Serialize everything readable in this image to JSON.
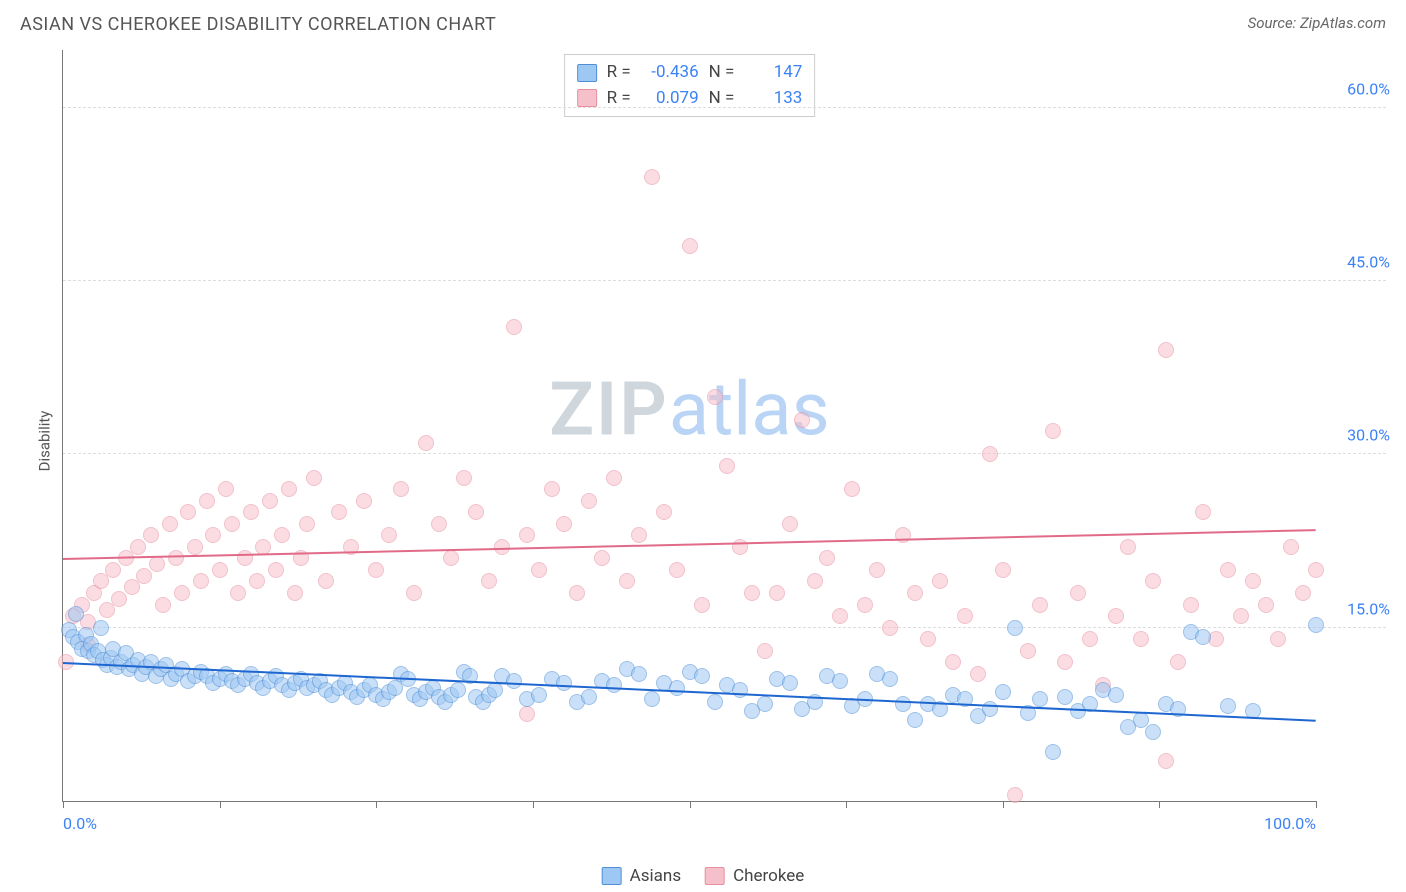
{
  "title": "ASIAN VS CHEROKEE DISABILITY CORRELATION CHART",
  "source": "Source: ZipAtlas.com",
  "ylabel": "Disability",
  "watermark": {
    "zip": "ZIP",
    "atlas": "atlas"
  },
  "chart": {
    "type": "scatter",
    "xlim": [
      0,
      100
    ],
    "ylim": [
      0,
      65
    ],
    "y_ticks": [
      15.0,
      30.0,
      45.0,
      60.0
    ],
    "y_tick_labels": [
      "15.0%",
      "30.0%",
      "45.0%",
      "60.0%"
    ],
    "x_ticks": [
      0,
      12.5,
      25,
      37.5,
      50,
      62.5,
      75,
      87.5,
      100
    ],
    "x_tick_labels": {
      "0": "0.0%",
      "100": "100.0%"
    },
    "background_color": "#ffffff",
    "grid_color": "#dddddd",
    "axis_color": "#777777",
    "tick_label_color": "#3b82f6",
    "marker_radius": 8,
    "marker_opacity": 0.55
  },
  "series": {
    "asians": {
      "label": "Asians",
      "fill": "#9ec8f4",
      "stroke": "#4f8fd6",
      "trend_color": "#1e66d0",
      "trend": {
        "y_at_x0": 12.0,
        "y_at_x100": 7.0
      },
      "R": "-0.436",
      "N": "147",
      "points": [
        [
          0.5,
          14.8
        ],
        [
          0.8,
          14.2
        ],
        [
          1.0,
          16.2
        ],
        [
          1.2,
          13.8
        ],
        [
          1.5,
          13.2
        ],
        [
          1.8,
          14.4
        ],
        [
          2.0,
          13.0
        ],
        [
          2.2,
          13.6
        ],
        [
          2.5,
          12.6
        ],
        [
          2.8,
          13.0
        ],
        [
          3.0,
          15.0
        ],
        [
          3.2,
          12.2
        ],
        [
          3.5,
          11.8
        ],
        [
          3.8,
          12.4
        ],
        [
          4.0,
          13.2
        ],
        [
          4.3,
          11.6
        ],
        [
          4.6,
          12.0
        ],
        [
          5.0,
          12.8
        ],
        [
          5.3,
          11.4
        ],
        [
          5.6,
          11.8
        ],
        [
          6.0,
          12.2
        ],
        [
          6.3,
          11.0
        ],
        [
          6.6,
          11.6
        ],
        [
          7.0,
          12.0
        ],
        [
          7.4,
          10.8
        ],
        [
          7.8,
          11.4
        ],
        [
          8.2,
          11.8
        ],
        [
          8.6,
          10.6
        ],
        [
          9.0,
          11.0
        ],
        [
          9.5,
          11.4
        ],
        [
          10.0,
          10.4
        ],
        [
          10.5,
          10.8
        ],
        [
          11.0,
          11.2
        ],
        [
          11.5,
          10.8
        ],
        [
          12.0,
          10.2
        ],
        [
          12.5,
          10.6
        ],
        [
          13.0,
          11.0
        ],
        [
          13.5,
          10.4
        ],
        [
          14.0,
          10.0
        ],
        [
          14.5,
          10.6
        ],
        [
          15.0,
          11.0
        ],
        [
          15.5,
          10.2
        ],
        [
          16.0,
          9.8
        ],
        [
          16.5,
          10.4
        ],
        [
          17.0,
          10.8
        ],
        [
          17.5,
          10.0
        ],
        [
          18.0,
          9.6
        ],
        [
          18.5,
          10.2
        ],
        [
          19.0,
          10.6
        ],
        [
          19.5,
          9.8
        ],
        [
          20.0,
          10.0
        ],
        [
          20.5,
          10.4
        ],
        [
          21.0,
          9.6
        ],
        [
          21.5,
          9.2
        ],
        [
          22.0,
          9.8
        ],
        [
          22.5,
          10.2
        ],
        [
          23.0,
          9.4
        ],
        [
          23.5,
          9.0
        ],
        [
          24.0,
          9.6
        ],
        [
          24.5,
          10.0
        ],
        [
          25.0,
          9.2
        ],
        [
          25.5,
          8.8
        ],
        [
          26.0,
          9.4
        ],
        [
          26.5,
          9.8
        ],
        [
          27.0,
          11.0
        ],
        [
          27.5,
          10.6
        ],
        [
          28.0,
          9.2
        ],
        [
          28.5,
          8.8
        ],
        [
          29.0,
          9.4
        ],
        [
          29.5,
          9.8
        ],
        [
          30.0,
          9.0
        ],
        [
          30.5,
          8.6
        ],
        [
          31.0,
          9.2
        ],
        [
          31.5,
          9.6
        ],
        [
          32.0,
          11.2
        ],
        [
          32.5,
          10.8
        ],
        [
          33.0,
          9.0
        ],
        [
          33.5,
          8.6
        ],
        [
          34.0,
          9.2
        ],
        [
          34.5,
          9.6
        ],
        [
          35.0,
          10.8
        ],
        [
          36.0,
          10.4
        ],
        [
          37.0,
          8.8
        ],
        [
          38.0,
          9.2
        ],
        [
          39.0,
          10.6
        ],
        [
          40.0,
          10.2
        ],
        [
          41.0,
          8.6
        ],
        [
          42.0,
          9.0
        ],
        [
          43.0,
          10.4
        ],
        [
          44.0,
          10.0
        ],
        [
          45.0,
          11.4
        ],
        [
          46.0,
          11.0
        ],
        [
          47.0,
          8.8
        ],
        [
          48.0,
          10.2
        ],
        [
          49.0,
          9.8
        ],
        [
          50.0,
          11.2
        ],
        [
          51.0,
          10.8
        ],
        [
          52.0,
          8.6
        ],
        [
          53.0,
          10.0
        ],
        [
          54.0,
          9.6
        ],
        [
          55.0,
          7.8
        ],
        [
          56.0,
          8.4
        ],
        [
          57.0,
          10.6
        ],
        [
          58.0,
          10.2
        ],
        [
          59.0,
          8.0
        ],
        [
          60.0,
          8.6
        ],
        [
          61.0,
          10.8
        ],
        [
          62.0,
          10.4
        ],
        [
          63.0,
          8.2
        ],
        [
          64.0,
          8.8
        ],
        [
          65.0,
          11.0
        ],
        [
          66.0,
          10.6
        ],
        [
          67.0,
          8.4
        ],
        [
          68.0,
          7.0
        ],
        [
          69.0,
          8.4
        ],
        [
          70.0,
          8.0
        ],
        [
          71.0,
          9.2
        ],
        [
          72.0,
          8.8
        ],
        [
          73.0,
          7.4
        ],
        [
          74.0,
          8.0
        ],
        [
          75.0,
          9.4
        ],
        [
          76.0,
          15.0
        ],
        [
          77.0,
          7.6
        ],
        [
          78.0,
          8.8
        ],
        [
          79.0,
          4.2
        ],
        [
          80.0,
          9.0
        ],
        [
          81.0,
          7.8
        ],
        [
          82.0,
          8.4
        ],
        [
          83.0,
          9.6
        ],
        [
          84.0,
          9.2
        ],
        [
          85.0,
          6.4
        ],
        [
          86.0,
          7.0
        ],
        [
          87.0,
          6.0
        ],
        [
          88.0,
          8.4
        ],
        [
          89.0,
          8.0
        ],
        [
          90.0,
          14.6
        ],
        [
          91.0,
          14.2
        ],
        [
          93.0,
          8.2
        ],
        [
          95.0,
          7.8
        ],
        [
          100.0,
          15.2
        ]
      ]
    },
    "cherokee": {
      "label": "Cherokee",
      "fill": "#f6c0cb",
      "stroke": "#e88fa2",
      "trend_color": "#e16a88",
      "trend": {
        "y_at_x0": 21.0,
        "y_at_x100": 23.5
      },
      "R": "0.079",
      "N": "133",
      "points": [
        [
          0.2,
          12.0
        ],
        [
          0.8,
          16.0
        ],
        [
          1.5,
          17.0
        ],
        [
          2.0,
          15.5
        ],
        [
          2.5,
          18.0
        ],
        [
          3.0,
          19.0
        ],
        [
          3.5,
          16.5
        ],
        [
          4.0,
          20.0
        ],
        [
          4.5,
          17.5
        ],
        [
          5.0,
          21.0
        ],
        [
          5.5,
          18.5
        ],
        [
          6.0,
          22.0
        ],
        [
          6.5,
          19.5
        ],
        [
          7.0,
          23.0
        ],
        [
          7.5,
          20.5
        ],
        [
          8.0,
          17.0
        ],
        [
          8.5,
          24.0
        ],
        [
          9.0,
          21.0
        ],
        [
          9.5,
          18.0
        ],
        [
          10.0,
          25.0
        ],
        [
          10.5,
          22.0
        ],
        [
          11.0,
          19.0
        ],
        [
          11.5,
          26.0
        ],
        [
          12.0,
          23.0
        ],
        [
          12.5,
          20.0
        ],
        [
          13.0,
          27.0
        ],
        [
          13.5,
          24.0
        ],
        [
          14.0,
          18.0
        ],
        [
          14.5,
          21.0
        ],
        [
          15.0,
          25.0
        ],
        [
          15.5,
          19.0
        ],
        [
          16.0,
          22.0
        ],
        [
          16.5,
          26.0
        ],
        [
          17.0,
          20.0
        ],
        [
          17.5,
          23.0
        ],
        [
          18.0,
          27.0
        ],
        [
          18.5,
          18.0
        ],
        [
          19.0,
          21.0
        ],
        [
          19.5,
          24.0
        ],
        [
          20.0,
          28.0
        ],
        [
          21.0,
          19.0
        ],
        [
          22.0,
          25.0
        ],
        [
          23.0,
          22.0
        ],
        [
          24.0,
          26.0
        ],
        [
          25.0,
          20.0
        ],
        [
          26.0,
          23.0
        ],
        [
          27.0,
          27.0
        ],
        [
          28.0,
          18.0
        ],
        [
          29.0,
          31.0
        ],
        [
          30.0,
          24.0
        ],
        [
          31.0,
          21.0
        ],
        [
          32.0,
          28.0
        ],
        [
          33.0,
          25.0
        ],
        [
          34.0,
          19.0
        ],
        [
          35.0,
          22.0
        ],
        [
          36.0,
          41.0
        ],
        [
          37.0,
          23.0
        ],
        [
          38.0,
          20.0
        ],
        [
          39.0,
          27.0
        ],
        [
          40.0,
          24.0
        ],
        [
          41.0,
          18.0
        ],
        [
          42.0,
          26.0
        ],
        [
          43.0,
          21.0
        ],
        [
          44.0,
          28.0
        ],
        [
          45.0,
          19.0
        ],
        [
          46.0,
          23.0
        ],
        [
          47.0,
          54.0
        ],
        [
          48.0,
          25.0
        ],
        [
          49.0,
          20.0
        ],
        [
          50.0,
          48.0
        ],
        [
          51.0,
          17.0
        ],
        [
          52.0,
          35.0
        ],
        [
          53.0,
          29.0
        ],
        [
          54.0,
          22.0
        ],
        [
          55.0,
          18.0
        ],
        [
          56.0,
          13.0
        ],
        [
          57.0,
          18.0
        ],
        [
          58.0,
          24.0
        ],
        [
          59.0,
          33.0
        ],
        [
          60.0,
          19.0
        ],
        [
          61.0,
          21.0
        ],
        [
          62.0,
          16.0
        ],
        [
          63.0,
          27.0
        ],
        [
          64.0,
          17.0
        ],
        [
          65.0,
          20.0
        ],
        [
          66.0,
          15.0
        ],
        [
          67.0,
          23.0
        ],
        [
          68.0,
          18.0
        ],
        [
          69.0,
          14.0
        ],
        [
          70.0,
          19.0
        ],
        [
          71.0,
          12.0
        ],
        [
          72.0,
          16.0
        ],
        [
          73.0,
          11.0
        ],
        [
          74.0,
          30.0
        ],
        [
          75.0,
          20.0
        ],
        [
          76.0,
          0.5
        ],
        [
          77.0,
          13.0
        ],
        [
          78.0,
          17.0
        ],
        [
          79.0,
          32.0
        ],
        [
          80.0,
          12.0
        ],
        [
          81.0,
          18.0
        ],
        [
          82.0,
          14.0
        ],
        [
          83.0,
          10.0
        ],
        [
          84.0,
          16.0
        ],
        [
          85.0,
          22.0
        ],
        [
          86.0,
          14.0
        ],
        [
          87.0,
          19.0
        ],
        [
          88.0,
          39.0
        ],
        [
          89.0,
          12.0
        ],
        [
          90.0,
          17.0
        ],
        [
          91.0,
          25.0
        ],
        [
          92.0,
          14.0
        ],
        [
          93.0,
          20.0
        ],
        [
          94.0,
          16.0
        ],
        [
          95.0,
          19.0
        ],
        [
          96.0,
          17.0
        ],
        [
          97.0,
          14.0
        ],
        [
          98.0,
          22.0
        ],
        [
          99.0,
          18.0
        ],
        [
          100.0,
          20.0
        ],
        [
          88.0,
          3.5
        ],
        [
          37.0,
          7.5
        ],
        [
          2.0,
          13.5
        ]
      ]
    }
  },
  "stats_labels": {
    "R": "R =",
    "N": "N ="
  },
  "legend_order": [
    "asians",
    "cherokee"
  ]
}
